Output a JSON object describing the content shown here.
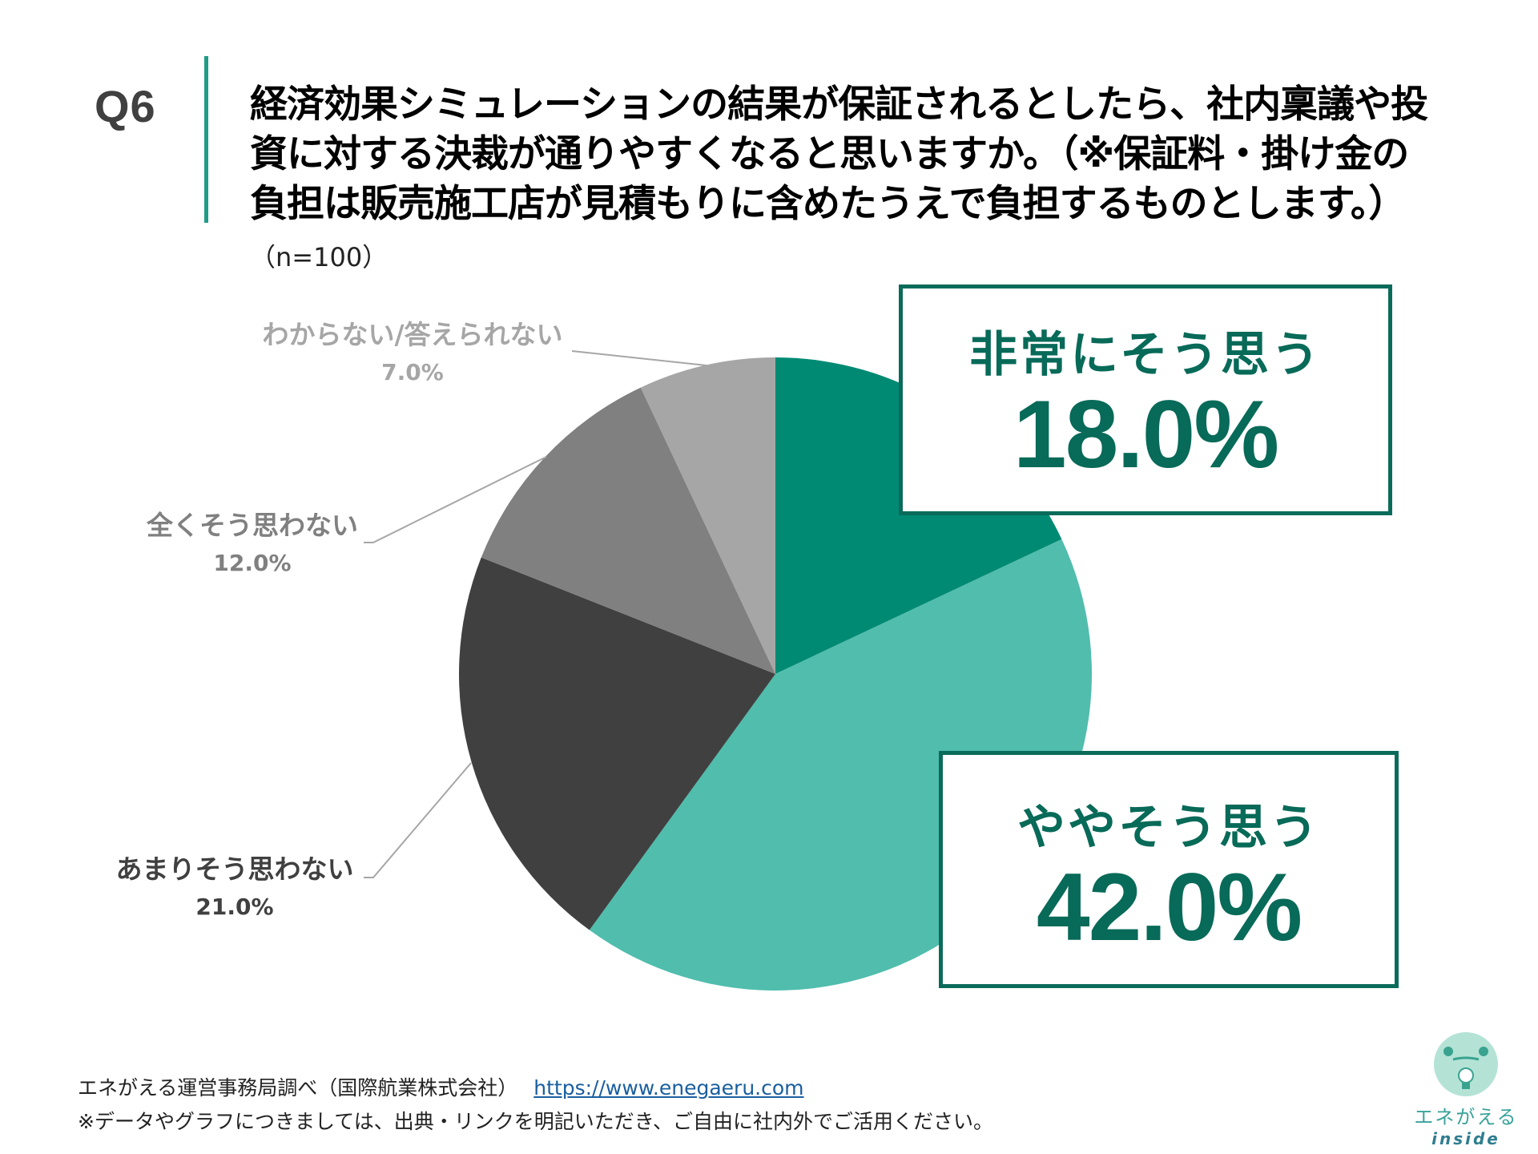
{
  "question": {
    "number": "Q6",
    "title_lines": [
      "経済効果シミュレーションの結果が保証されるとしたら、社内稟議や投",
      "資に対する決裁が通りやすくなると思いますか。（※保証料・掛け金の",
      "負担は販売施工店が見積もりに含めたうえで負担するものとします。）"
    ],
    "sample_size": "（n=100）"
  },
  "callouts": [
    {
      "label": "非常にそう思う",
      "value": "18.0%"
    },
    {
      "label": "ややそう思う",
      "value": "42.0%"
    }
  ],
  "side_labels": [
    {
      "label": "わからない/答えられない",
      "value": "7.0%",
      "color": "#a6a6a6"
    },
    {
      "label": "全くそう思わない",
      "value": "12.0%",
      "color": "#808080"
    },
    {
      "label": "あまりそう思わない",
      "value": "21.0%",
      "color": "#404040"
    }
  ],
  "footer": {
    "source": "エネがえる運営事務局調べ（国際航業株式会社）",
    "link": "https://www.enegaeru.com",
    "note": "※データやグラフにつきましては、出典・リンクを明記いただき、ご自由に社内外でご活用ください。"
  },
  "logo": {
    "brand": "エネがえる",
    "sub": "inside"
  },
  "colors": {
    "accent": "#1f9c88",
    "callout_text": "#086a58",
    "callout_border": "#0b6b5a"
  },
  "chart_data": {
    "type": "pie",
    "title": "経済効果シミュレーションの結果が保証されるとしたら、社内稟議や投資に対する決裁が通りやすくなると思いますか。",
    "n": 100,
    "start_angle_deg": 0,
    "direction": "clockwise",
    "categories": [
      "非常にそう思う",
      "ややそう思う",
      "あまりそう思わない",
      "全くそう思わない",
      "わからない/答えられない"
    ],
    "values": [
      18.0,
      42.0,
      21.0,
      12.0,
      7.0
    ],
    "colors": [
      "#008a74",
      "#50bdad",
      "#404040",
      "#808080",
      "#a6a6a6"
    ],
    "unit": "%"
  }
}
